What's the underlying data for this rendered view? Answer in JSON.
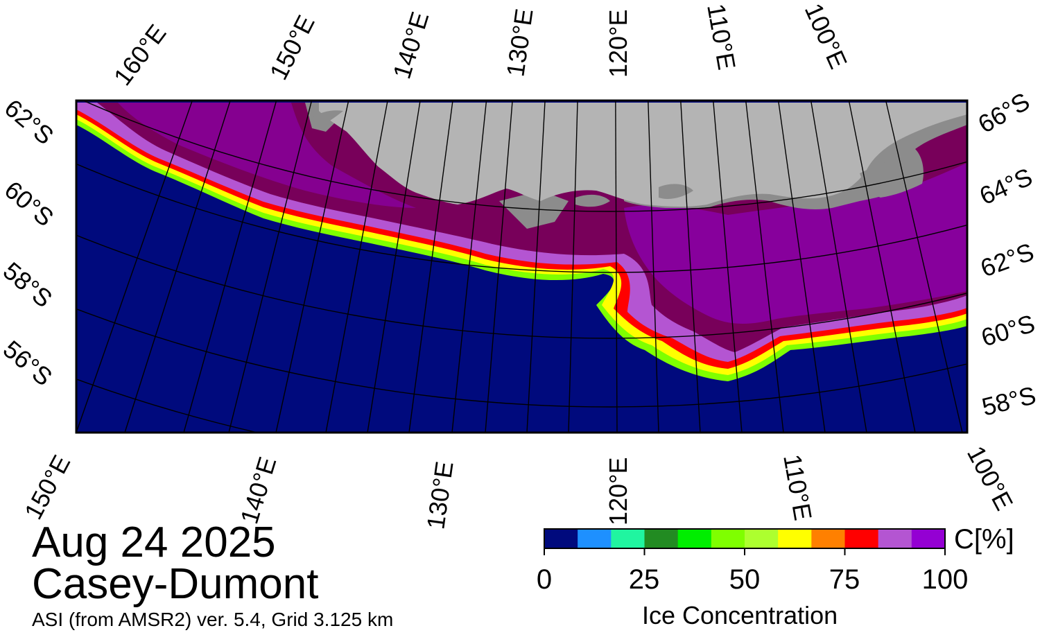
{
  "title": {
    "date": "Aug 24 2025",
    "region": "Casey-Dumont"
  },
  "subtitle": "ASI (from AMSR2) ver. 5.4,  Grid 3.125 km",
  "top_longitude_labels": [
    "160°E",
    "150°E",
    "140°E",
    "130°E",
    "120°E",
    "110°E",
    "100°E"
  ],
  "bottom_longitude_labels": [
    "150°E",
    "140°E",
    "130°E",
    "120°E",
    "110°E",
    "100°E"
  ],
  "left_latitude_labels": [
    "62°S",
    "60°S",
    "58°S",
    "56°S"
  ],
  "right_latitude_labels": [
    "66°S",
    "64°S",
    "62°S",
    "60°S",
    "58°S"
  ],
  "colorbar": {
    "title": "Ice Concentration",
    "unit": "C[%]",
    "ticks": [
      "0",
      "25",
      "50",
      "75",
      "100"
    ],
    "tick_values": [
      0,
      25,
      50,
      75,
      100
    ],
    "range": [
      0,
      100
    ],
    "colors": [
      "#000a7d",
      "#1e90ff",
      "#20f5a0",
      "#228b22",
      "#00ee00",
      "#7fff00",
      "#adff2f",
      "#ffff00",
      "#ff8000",
      "#ff0000",
      "#b455d2",
      "#9400d3"
    ]
  },
  "map_colors": {
    "ocean": "#000a7d",
    "land": "#b4b4b4",
    "land_shadow": "#8c8c8c",
    "pack_ice": "#78005a",
    "grid": "#000000"
  }
}
